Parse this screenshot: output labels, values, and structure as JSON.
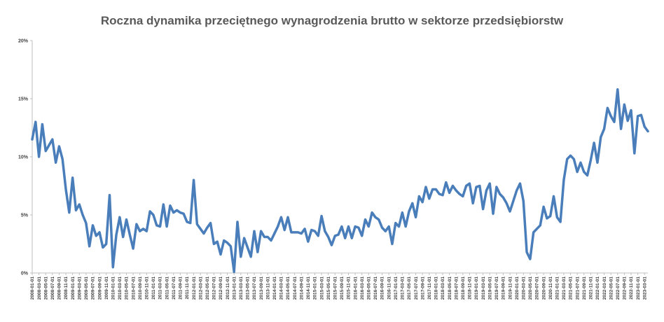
{
  "chart_data": {
    "type": "line",
    "title": "Roczna dynamika przeciętnego wynagrodzenia brutto w sektorze przedsiębiorstw",
    "ylim": [
      0,
      20
    ],
    "yticks": [
      "0%",
      "5%",
      "10%",
      "15%",
      "20%"
    ],
    "grid": false,
    "legend": "none",
    "line_color": "#4A7EBB",
    "x_start": "2008-01",
    "x_end": "2023-05",
    "x_tick_interval_months": 2,
    "xtick_labels": [
      "2008-01-01",
      "2008-03-01",
      "2008-05-01",
      "2008-07-01",
      "2008-09-01",
      "2008-11-01",
      "2009-01-01",
      "2009-03-01",
      "2009-05-01",
      "2009-07-01",
      "2009-09-01",
      "2009-11-01",
      "2010-01-01",
      "2010-03-01",
      "2010-05-01",
      "2010-07-01",
      "2010-09-01",
      "2010-11-01",
      "2011-01-01",
      "2011-03-01",
      "2011-05-01",
      "2011-07-01",
      "2011-09-01",
      "2011-11-01",
      "2012-01-01",
      "2012-03-01",
      "2012-05-01",
      "2012-07-01",
      "2012-09-01",
      "2012-11-01",
      "2013-01-01",
      "2013-03-01",
      "2013-05-01",
      "2013-07-01",
      "2013-09-01",
      "2013-11-01",
      "2014-01-01",
      "2014-03-01",
      "2014-05-01",
      "2014-07-01",
      "2014-09-01",
      "2014-11-01",
      "2015-01-01",
      "2015-03-01",
      "2015-05-01",
      "2015-07-01",
      "2015-09-01",
      "2015-11-01",
      "2016-01-01",
      "2016-03-01",
      "2016-05-01",
      "2016-07-01",
      "2016-09-01",
      "2016-11-01",
      "2017-01-01",
      "2017-03-01",
      "2017-05-01",
      "2017-07-01",
      "2017-09-01",
      "2017-11-01",
      "2018-01-01",
      "2018-03-01",
      "2018-05-01",
      "2018-07-01",
      "2018-09-01",
      "2018-11-01",
      "2019-01-01",
      "2019-03-01",
      "2019-05-01",
      "2019-07-01",
      "2019-09-01",
      "2019-11-01",
      "2020-01-01",
      "2020-03-01",
      "2020-05-01",
      "2020-07-01",
      "2020-09-01",
      "2020-11-01",
      "2021-01-01",
      "2021-03-01",
      "2021-05-01",
      "2021-07-01",
      "2021-09-01",
      "2021-11-01",
      "2022-01-01",
      "2022-03-01",
      "2022-05-01",
      "2022-07-01",
      "2022-09-01",
      "2022-11-01",
      "2023-01-01",
      "2023-03-01"
    ],
    "values": [
      11.5,
      13.0,
      10.0,
      12.8,
      10.5,
      11.0,
      11.5,
      9.5,
      10.9,
      9.8,
      7.2,
      5.2,
      8.2,
      5.4,
      5.9,
      5.0,
      4.3,
      2.3,
      4.1,
      3.2,
      3.5,
      2.2,
      2.5,
      6.7,
      0.5,
      3.3,
      4.8,
      3.1,
      4.6,
      3.3,
      2.1,
      4.2,
      3.6,
      3.8,
      3.6,
      5.3,
      5.0,
      4.1,
      4.0,
      5.9,
      4.0,
      5.8,
      5.2,
      5.4,
      5.2,
      5.1,
      4.4,
      4.3,
      8.0,
      4.2,
      3.8,
      3.4,
      3.9,
      4.3,
      2.5,
      2.7,
      1.6,
      2.8,
      2.6,
      2.3,
      0.1,
      4.4,
      1.4,
      3.0,
      2.2,
      1.4,
      3.6,
      1.8,
      3.6,
      3.1,
      3.1,
      2.8,
      3.4,
      4.0,
      4.8,
      3.7,
      4.8,
      3.5,
      3.5,
      3.5,
      3.4,
      3.8,
      2.7,
      3.7,
      3.6,
      3.2,
      4.9,
      3.6,
      3.1,
      2.4,
      3.2,
      3.3,
      4.0,
      3.0,
      4.0,
      3.0,
      4.0,
      3.9,
      3.2,
      4.6,
      4.0,
      5.2,
      4.8,
      4.6,
      3.9,
      3.6,
      4.0,
      2.5,
      4.3,
      4.0,
      5.2,
      4.0,
      5.3,
      6.0,
      4.8,
      6.6,
      6.1,
      7.4,
      6.4,
      7.2,
      7.2,
      6.8,
      6.7,
      7.8,
      6.9,
      7.5,
      7.1,
      6.8,
      6.6,
      7.5,
      7.7,
      6.0,
      7.4,
      7.5,
      5.5,
      7.1,
      7.7,
      5.1,
      7.4,
      6.8,
      6.5,
      6.0,
      5.3,
      6.2,
      7.1,
      7.7,
      6.2,
      1.8,
      1.2,
      3.5,
      3.8,
      4.1,
      5.7,
      4.7,
      4.9,
      6.6,
      4.8,
      4.4,
      8.0,
      9.8,
      10.1,
      9.8,
      8.7,
      9.5,
      8.7,
      8.4,
      9.7,
      11.2,
      9.5,
      11.7,
      12.4,
      14.2,
      13.5,
      13.0,
      15.8,
      12.4,
      14.5,
      13.1,
      14.0,
      10.3,
      13.5,
      13.6,
      12.6,
      12.2
    ]
  }
}
